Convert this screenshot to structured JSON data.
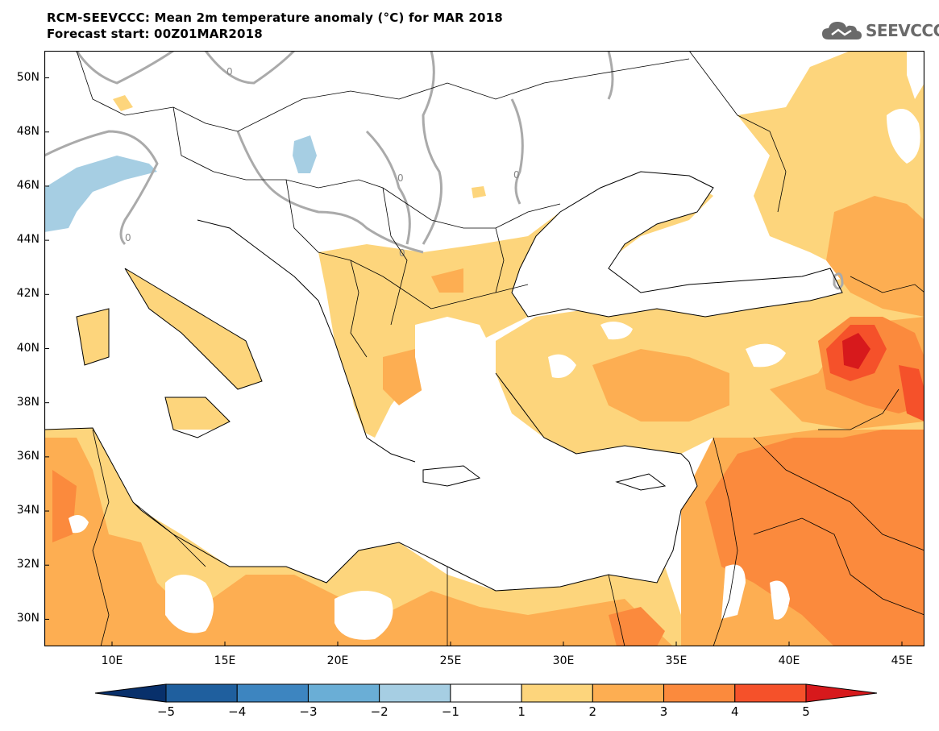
{
  "title": {
    "line1": "RCM-SEEVCCC: Mean 2m temperature anomaly (°C) for MAR 2018",
    "line2": "Forecast start: 00Z01MAR2018"
  },
  "logo": {
    "text": "SEEVCCC",
    "icon": "cloud-icon"
  },
  "map": {
    "contour_zero_label": "0",
    "lat_ticks": [
      {
        "label": "50N",
        "value": 50
      },
      {
        "label": "48N",
        "value": 48
      },
      {
        "label": "46N",
        "value": 46
      },
      {
        "label": "44N",
        "value": 44
      },
      {
        "label": "42N",
        "value": 42
      },
      {
        "label": "40N",
        "value": 40
      },
      {
        "label": "38N",
        "value": 38
      },
      {
        "label": "36N",
        "value": 36
      },
      {
        "label": "34N",
        "value": 34
      },
      {
        "label": "32N",
        "value": 32
      },
      {
        "label": "30N",
        "value": 30
      }
    ],
    "lon_ticks": [
      {
        "label": "10E",
        "value": 10
      },
      {
        "label": "15E",
        "value": 15
      },
      {
        "label": "20E",
        "value": 20
      },
      {
        "label": "25E",
        "value": 25
      },
      {
        "label": "30E",
        "value": 30
      },
      {
        "label": "35E",
        "value": 35
      },
      {
        "label": "40E",
        "value": 40
      },
      {
        "label": "45E",
        "value": 45
      }
    ],
    "lon_range": [
      7,
      46
    ],
    "lat_range": [
      29,
      51
    ]
  },
  "colorbar": {
    "labels": [
      "−5",
      "−4",
      "−3",
      "−2",
      "−1",
      "1",
      "2",
      "3",
      "4",
      "5"
    ],
    "colors": [
      "#08306b",
      "#1f5f9e",
      "#3d85c0",
      "#6aaed6",
      "#a6cee3",
      "#ffffff",
      "#fdd57c",
      "#fdae52",
      "#fb8a3d",
      "#f5512a",
      "#d7191c"
    ]
  }
}
